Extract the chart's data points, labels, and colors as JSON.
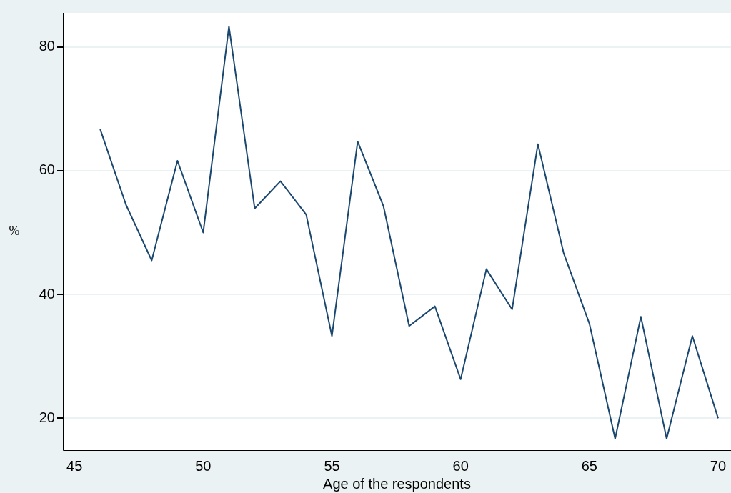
{
  "chart_data": {
    "type": "line",
    "xlabel": "Age of the respondents",
    "ylabel": "%",
    "x": [
      46,
      47,
      48,
      49,
      50,
      51,
      52,
      53,
      54,
      55,
      56,
      57,
      58,
      59,
      60,
      61,
      62,
      63,
      64,
      65,
      66,
      67,
      68,
      69,
      70
    ],
    "series": [
      {
        "color": "#1a476f",
        "values": [
          66.7,
          54.5,
          45.5,
          61.6,
          50,
          83.3,
          53.9,
          58.3,
          52.9,
          33.3,
          64.7,
          54.3,
          34.9,
          38.1,
          26.3,
          44.1,
          37.6,
          64.3,
          46.7,
          35.3,
          16.7,
          36.4,
          16.7,
          33.3,
          20
        ]
      }
    ],
    "xlim": [
      44.55,
      70.5
    ],
    "xticks": [
      45,
      50,
      55,
      60,
      65,
      70
    ],
    "ylim": [
      14.85,
      85.5
    ],
    "yticks": [
      20,
      40,
      60,
      80
    ],
    "grid": "y",
    "legend": false,
    "marker": "none",
    "line_style": "solid"
  }
}
